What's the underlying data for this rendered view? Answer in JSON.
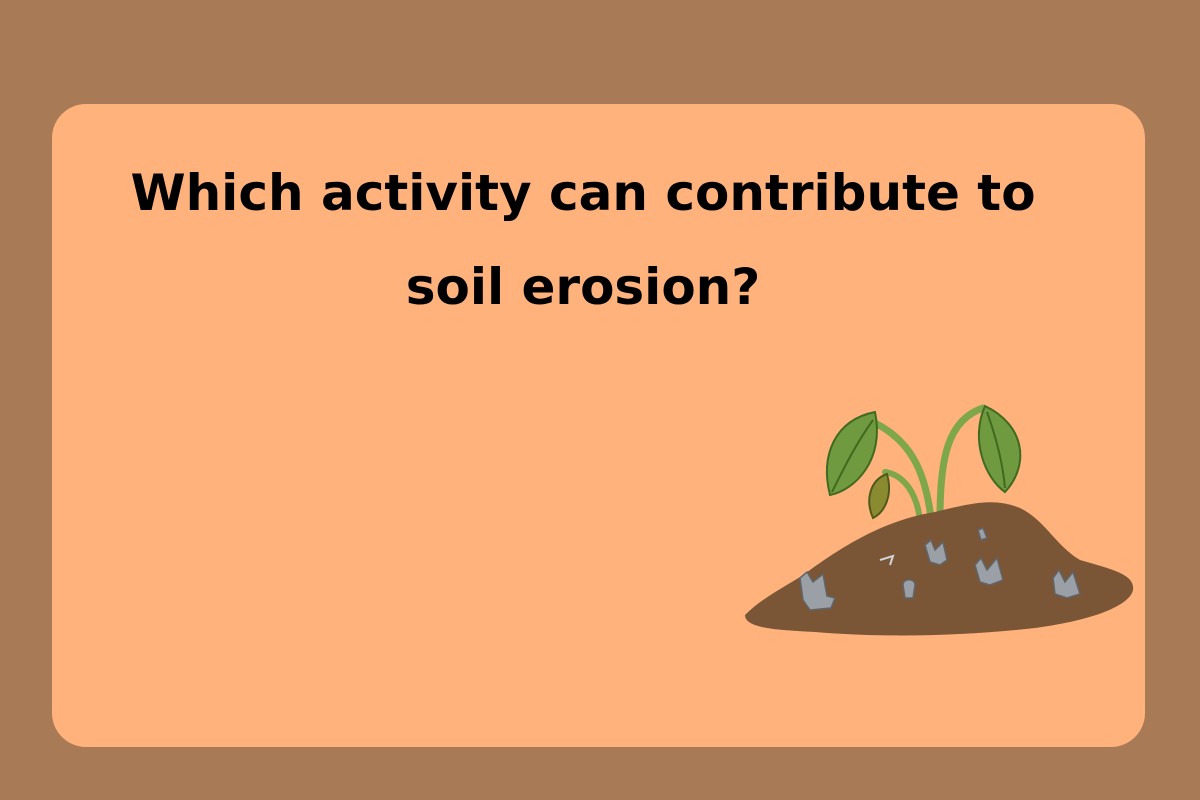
{
  "question": {
    "line1": "Which activity can contribute to",
    "line2": "soil erosion?"
  },
  "illustration": {
    "icon": "polluted-soil-plant-icon"
  },
  "colors": {
    "background": "#a87b56",
    "card": "#ffb27c",
    "text": "#000000",
    "soil": "#7a5636",
    "leaf": "#6f9a3f",
    "stem": "#7ea64a",
    "trash": "#9aa0a6"
  }
}
